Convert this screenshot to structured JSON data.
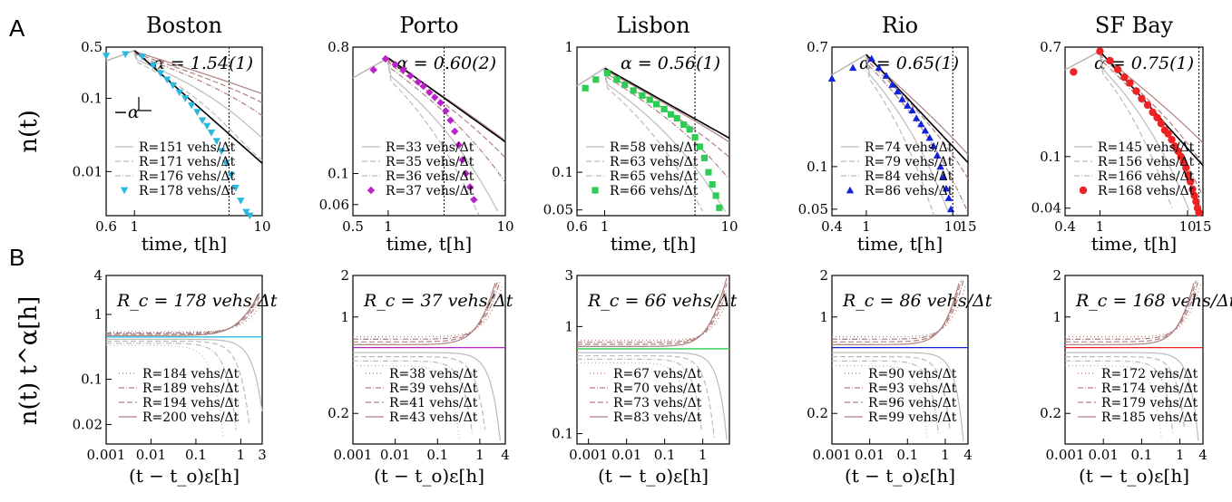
{
  "figure": {
    "panel_labels": [
      "A",
      "B"
    ],
    "row_a_ylabel": "n(t)",
    "row_b_ylabel": "n(t) t^α[h]",
    "row_a_xlabel": "time, t[h]",
    "row_b_xlabel": "(t − t_o)ε[h]"
  },
  "colors": {
    "Boston": "#29b8e0",
    "Porto": "#bb22cc",
    "Lisbon": "#2ecc55",
    "Rio": "#1122dd",
    "SF Bay": "#ee2222",
    "brown": "#b08080",
    "gray": "#bbbbbb"
  },
  "chart_data": [
    {
      "type": "line",
      "city": "Boston",
      "row": "A",
      "title": "Boston",
      "alpha": "α = 1.54(1)",
      "slope_label": "−α",
      "scale": "log-log",
      "xlim": [
        0.6,
        10
      ],
      "ylim": [
        0.0025,
        0.5
      ],
      "xticks": [
        "0.6",
        "1",
        "10"
      ],
      "yticks": [
        "0.01",
        "0.1",
        "0.5"
      ],
      "vline": 5.5,
      "peak": [
        1,
        0.45
      ],
      "legend": [
        "R=151 vehs/Δt",
        "R=171 vehs/Δt",
        "R=176 vehs/Δt",
        "R=178 vehs/Δt"
      ],
      "marker": "triangle-down",
      "points_x": [
        0.6,
        0.85,
        1.15,
        1.4,
        1.6,
        1.8,
        2.0,
        2.25,
        2.5,
        2.8,
        3.1,
        3.4,
        3.7,
        4.0,
        4.4,
        4.8,
        5.2,
        5.7,
        6.2,
        6.8,
        7.5,
        8.0
      ],
      "points_y": [
        0.38,
        0.4,
        0.37,
        0.28,
        0.22,
        0.18,
        0.15,
        0.12,
        0.1,
        0.08,
        0.065,
        0.05,
        0.042,
        0.034,
        0.026,
        0.019,
        0.013,
        0.009,
        0.006,
        0.004,
        0.0028,
        0.0025
      ]
    },
    {
      "type": "line",
      "city": "Porto",
      "row": "A",
      "title": "Porto",
      "alpha": "α = 0.60(2)",
      "scale": "log-log",
      "xlim": [
        0.5,
        10
      ],
      "ylim": [
        0.05,
        0.8
      ],
      "xticks": [
        "0.5",
        "1",
        "10"
      ],
      "yticks": [
        "0.06",
        "0.1",
        "0.8"
      ],
      "vline": 3.0,
      "peak": [
        1,
        0.67
      ],
      "legend": [
        "R=33 vehs/Δt",
        "R=35 vehs/Δt",
        "R=36 vehs/Δt",
        "R=37 vehs/Δt"
      ],
      "marker": "diamond",
      "points_x": [
        0.75,
        0.95,
        1.15,
        1.35,
        1.55,
        1.8,
        2.0,
        2.25,
        2.5,
        2.8,
        3.1,
        3.4,
        3.7,
        4.0,
        4.3,
        4.6,
        5.0,
        5.4
      ],
      "points_y": [
        0.55,
        0.66,
        0.6,
        0.55,
        0.5,
        0.45,
        0.42,
        0.38,
        0.35,
        0.32,
        0.28,
        0.24,
        0.2,
        0.16,
        0.125,
        0.1,
        0.08,
        0.065
      ]
    },
    {
      "type": "line",
      "city": "Lisbon",
      "row": "A",
      "title": "Lisbon",
      "alpha": "α = 0.56(1)",
      "scale": "log-log",
      "xlim": [
        0.6,
        10
      ],
      "ylim": [
        0.045,
        1.0
      ],
      "xticks": [
        "0.6",
        "1",
        "10"
      ],
      "yticks": [
        "0.05",
        "0.1",
        "1"
      ],
      "vline": 5.3,
      "peak": [
        1,
        0.68
      ],
      "legend": [
        "R=58 vehs/Δt",
        "R=63 vehs/Δt",
        "R=65 vehs/Δt",
        "R=66 vehs/Δt"
      ],
      "marker": "square",
      "points_x": [
        0.7,
        0.85,
        1.05,
        1.25,
        1.45,
        1.7,
        2.0,
        2.3,
        2.6,
        3.0,
        3.4,
        3.8,
        4.3,
        4.8,
        5.3,
        5.8,
        6.3,
        6.8,
        7.3,
        7.8,
        8.3
      ],
      "points_y": [
        0.47,
        0.55,
        0.62,
        0.55,
        0.5,
        0.45,
        0.41,
        0.38,
        0.35,
        0.32,
        0.29,
        0.27,
        0.24,
        0.22,
        0.19,
        0.16,
        0.13,
        0.1,
        0.08,
        0.065,
        0.052
      ]
    },
    {
      "type": "line",
      "city": "Rio",
      "row": "A",
      "title": "Rio",
      "alpha": "α = 0.65(1)",
      "scale": "log-log",
      "xlim": [
        0.4,
        15
      ],
      "ylim": [
        0.045,
        0.7
      ],
      "xticks": [
        "0.4",
        "1",
        "10",
        "15"
      ],
      "yticks": [
        "0.05",
        "0.1",
        "0.7"
      ],
      "vline": 10.0,
      "peak": [
        1,
        0.62
      ],
      "legend": [
        "R=74 vehs/Δt",
        "R=79 vehs/Δt",
        "R=84 vehs/Δt",
        "R=86 vehs/Δt"
      ],
      "marker": "triangle-up",
      "points_x": [
        0.4,
        0.7,
        1.15,
        1.4,
        1.7,
        2.0,
        2.3,
        2.6,
        3.0,
        3.4,
        3.8,
        4.3,
        4.8,
        5.4,
        6.0,
        6.6,
        7.2,
        7.8,
        8.4,
        9.0,
        9.5
      ],
      "points_y": [
        0.42,
        0.5,
        0.58,
        0.5,
        0.44,
        0.38,
        0.34,
        0.3,
        0.27,
        0.25,
        0.22,
        0.2,
        0.18,
        0.16,
        0.14,
        0.12,
        0.1,
        0.085,
        0.07,
        0.06,
        0.05
      ]
    },
    {
      "type": "line",
      "city": "SF Bay",
      "row": "A",
      "title": "SF Bay",
      "alpha": "α = 0.75(1)",
      "scale": "log-log",
      "xlim": [
        0.4,
        15
      ],
      "ylim": [
        0.035,
        0.7
      ],
      "xticks": [
        "0.4",
        "1",
        "10",
        "15"
      ],
      "yticks": [
        "0.04",
        "0.1",
        "0.7"
      ],
      "vline": 13.5,
      "peak": [
        1,
        0.65
      ],
      "legend": [
        "R=145 vehs/Δt",
        "R=156 vehs/Δt",
        "R=166 vehs/Δt",
        "R=168 vehs/Δt"
      ],
      "marker": "circle",
      "points_x": [
        0.5,
        1.0,
        1.3,
        1.6,
        1.9,
        2.2,
        2.6,
        3.0,
        3.5,
        4.0,
        4.5,
        5.0,
        5.5,
        6.0,
        6.6,
        7.2,
        7.8,
        8.4,
        9.0,
        9.6,
        10.2,
        10.8,
        11.4,
        12.0,
        12.5,
        13.0,
        13.5
      ],
      "points_y": [
        0.45,
        0.65,
        0.55,
        0.47,
        0.41,
        0.37,
        0.32,
        0.28,
        0.25,
        0.22,
        0.2,
        0.18,
        0.16,
        0.15,
        0.135,
        0.12,
        0.11,
        0.1,
        0.09,
        0.082,
        0.072,
        0.064,
        0.056,
        0.05,
        0.045,
        0.04,
        0.037
      ]
    },
    {
      "type": "line",
      "city": "Boston",
      "row": "B",
      "rc": "178",
      "scale": "log-log",
      "xlim": [
        0.001,
        3
      ],
      "ylim": [
        0.01,
        4
      ],
      "xticks": [
        "0.001",
        "0.01",
        "0.1",
        "1",
        "3"
      ],
      "yticks": [
        "0.02",
        "0.1",
        "1",
        "4"
      ],
      "hline": 0.45,
      "legend": [
        "R=184 vehs/Δt",
        "R=189 vehs/Δt",
        "R=194 vehs/Δt",
        "R=200 vehs/Δt"
      ]
    },
    {
      "type": "line",
      "city": "Porto",
      "row": "B",
      "rc": "37",
      "scale": "log-log",
      "xlim": [
        0.001,
        4
      ],
      "ylim": [
        0.12,
        2
      ],
      "xticks": [
        "0.001",
        "0.01",
        "0.1",
        "1",
        "4"
      ],
      "yticks": [
        "0.2",
        "1",
        "2"
      ],
      "hline": 0.6,
      "legend": [
        "R=38 vehs/Δt",
        "R=39 vehs/Δt",
        "R=41 vehs/Δt",
        "R=43 vehs/Δt"
      ]
    },
    {
      "type": "line",
      "city": "Lisbon",
      "row": "B",
      "rc": "66",
      "scale": "log-log",
      "xlim": [
        0.0005,
        5
      ],
      "ylim": [
        0.08,
        3
      ],
      "xticks": [
        "0.001",
        "0.01",
        "0.1",
        "1"
      ],
      "yticks": [
        "0.1",
        "1",
        "3"
      ],
      "hline": 0.62,
      "legend": [
        "R=67 vehs/Δt",
        "R=70 vehs/Δt",
        "R=73 vehs/Δt",
        "R=83 vehs/Δt"
      ]
    },
    {
      "type": "line",
      "city": "Rio",
      "row": "B",
      "rc": "86",
      "scale": "log-log",
      "xlim": [
        0.001,
        4
      ],
      "ylim": [
        0.12,
        2
      ],
      "xticks": [
        "0.001",
        "0.01",
        "0.1",
        "1",
        "4"
      ],
      "yticks": [
        "0.2",
        "1",
        "2"
      ],
      "hline": 0.6,
      "legend": [
        "R=90 vehs/Δt",
        "R=93 vehs/Δt",
        "R=96 vehs/Δt",
        "R=99 vehs/Δt"
      ]
    },
    {
      "type": "line",
      "city": "SF Bay",
      "row": "B",
      "rc": "168",
      "scale": "log-log",
      "xlim": [
        0.001,
        4
      ],
      "ylim": [
        0.12,
        2
      ],
      "xticks": [
        "0.001",
        "0.01",
        "0.1",
        "1",
        "4"
      ],
      "yticks": [
        "0.2",
        "1",
        "2"
      ],
      "hline": 0.6,
      "legend": [
        "R=172 vehs/Δt",
        "R=174 vehs/Δt",
        "R=179 vehs/Δt",
        "R=185 vehs/Δt"
      ]
    }
  ]
}
